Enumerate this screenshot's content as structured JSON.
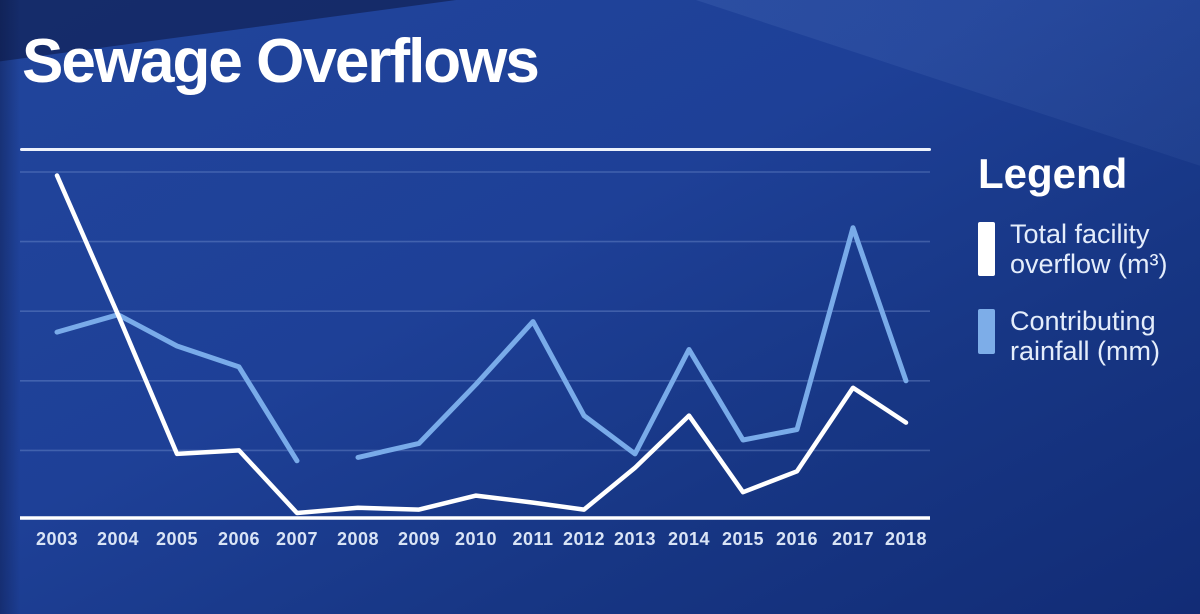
{
  "page": {
    "title": "Sewage Overflows"
  },
  "legend": {
    "heading": "Legend",
    "items": [
      {
        "name": "total-facility-overflow",
        "label": "Total facility overflow (m³)",
        "color": "#ffffff"
      },
      {
        "name": "contributing-rainfall",
        "label": "Contributing rainfall (mm)",
        "color": "#7dade8"
      }
    ]
  },
  "colors": {
    "background_top_left": "#21459c",
    "background_bottom_right": "#122c76",
    "overflow_line": "#ffffff",
    "rainfall_line": "#79abe9",
    "gridline": "rgba(148,176,230,0.30)",
    "axis_line": "#ffffff",
    "top_rule": "#edf2fc",
    "x_label_text": "#d9e4f6",
    "legend_text": "#e4edfb"
  },
  "chart_data": {
    "type": "line",
    "title": "Sewage Overflows",
    "xlabel": "",
    "ylabel": "",
    "categories": [
      "2003",
      "2004",
      "2005",
      "2006",
      "2007",
      "2008",
      "2009",
      "2010",
      "2011",
      "2012",
      "2013",
      "2014",
      "2015",
      "2016",
      "2017",
      "2018"
    ],
    "series": [
      {
        "name": "Total facility overflow (m³)",
        "color": "#ffffff",
        "values": [
          99,
          59,
          19,
          20,
          2,
          3.5,
          3,
          7,
          5,
          3,
          15,
          30,
          8,
          14,
          38,
          28
        ]
      },
      {
        "name": "Contributing rainfall (mm)",
        "color": "#79abe9",
        "values": [
          54,
          59,
          50,
          44,
          17,
          18,
          22,
          39,
          57,
          30,
          19,
          49,
          23,
          26,
          84,
          40
        ],
        "gap_after_index": 4
      }
    ],
    "ylim": [
      0,
      105.7
    ],
    "y_axis_labeled": false,
    "grid": "horizontal",
    "gridline_values": [
      20,
      40,
      60,
      80,
      100
    ],
    "legend_position": "right",
    "note": "No numeric y-axis is shown in the graphic; values are estimated on a relative 0-100 scale where one gridline interval = 20 units. The rainfall series has a visible gap between 2007 and 2008."
  }
}
